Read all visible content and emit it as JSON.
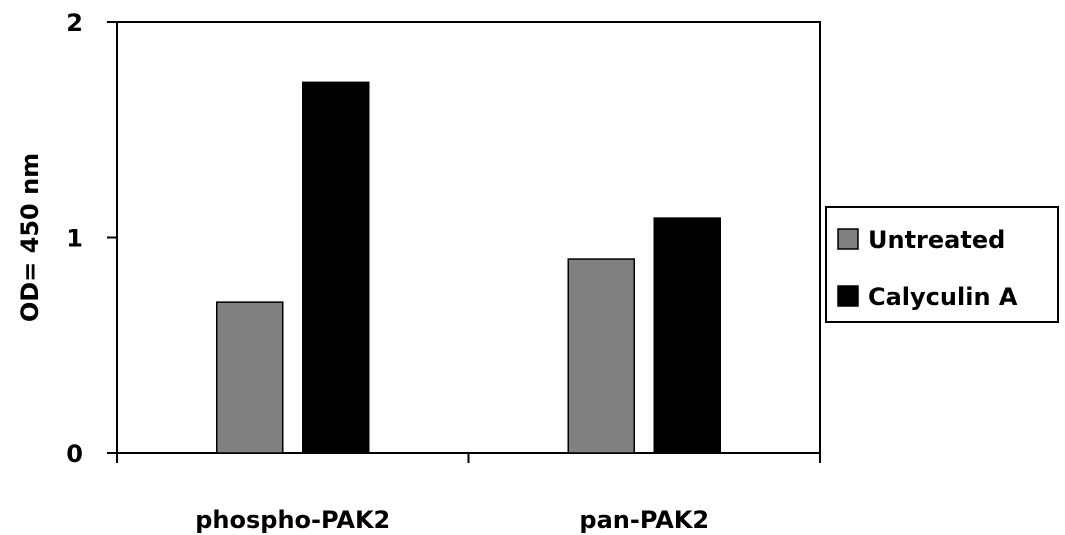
{
  "chart_data": {
    "type": "bar",
    "categories": [
      "phospho-PAK2",
      "pan-PAK2"
    ],
    "series": [
      {
        "name": "Untreated",
        "values": [
          0.7,
          0.9
        ],
        "color": "#808080"
      },
      {
        "name": "Calyculin A",
        "values": [
          1.72,
          1.09
        ],
        "color": "#000000"
      }
    ],
    "ylabel": "OD= 450 nm",
    "xlabel": "",
    "ylim": [
      0,
      2
    ],
    "yticks": [
      "0",
      "1",
      "2"
    ],
    "grid": false,
    "legend_position": "right"
  }
}
